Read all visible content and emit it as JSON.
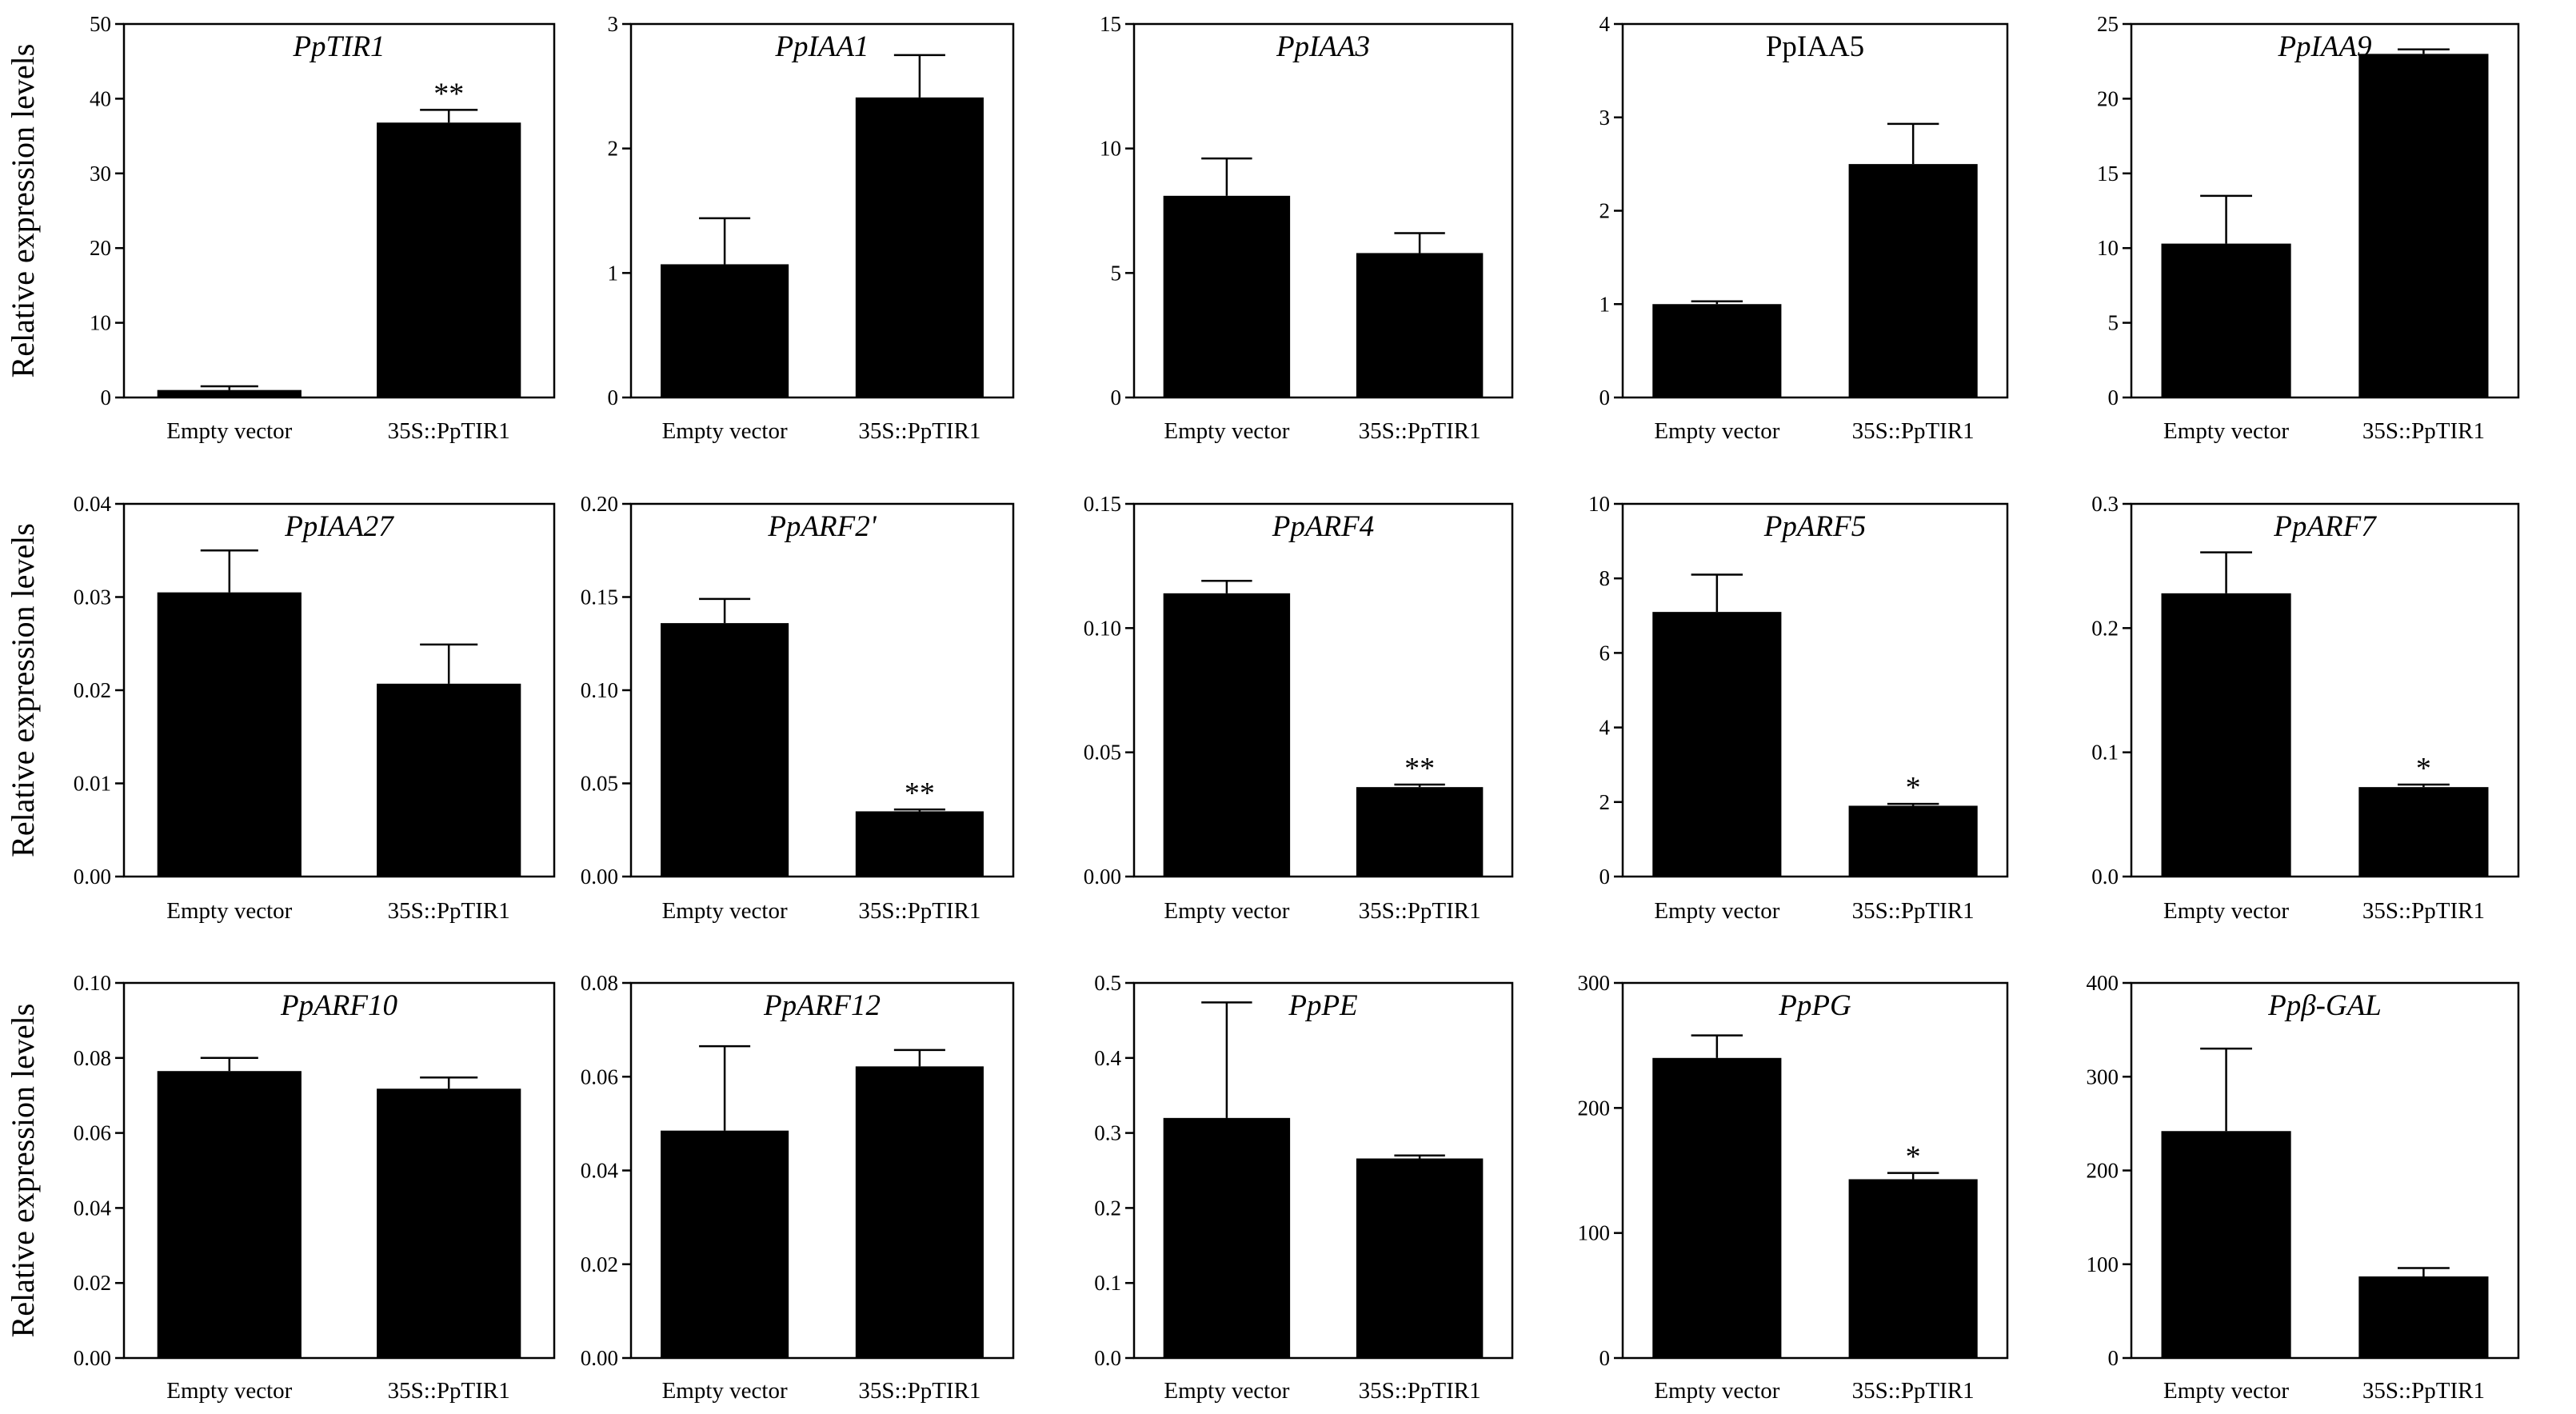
{
  "chart_data": {
    "type": "bar",
    "ylabel": "Relative expression levels",
    "categories": [
      "Empty vector",
      "35S::PpTIR1"
    ],
    "panels": [
      {
        "title": "PpTIR1",
        "italic": true,
        "ylim": [
          0,
          50
        ],
        "yticks": [
          "0",
          "10",
          "20",
          "30",
          "40",
          "50"
        ],
        "values": [
          1.0,
          36.8
        ],
        "errors": [
          0.5,
          1.7
        ],
        "sig": [
          "",
          "**"
        ]
      },
      {
        "title": "PpIAA1",
        "italic": true,
        "ylim": [
          0,
          3
        ],
        "yticks": [
          "0",
          "1",
          "2",
          "3"
        ],
        "values": [
          1.07,
          2.41
        ],
        "errors": [
          0.37,
          0.34
        ],
        "sig": [
          "",
          ""
        ]
      },
      {
        "title": "PpIAA3",
        "italic": true,
        "ylim": [
          0,
          15
        ],
        "yticks": [
          "0",
          "5",
          "10",
          "15"
        ],
        "values": [
          8.1,
          5.8
        ],
        "errors": [
          1.5,
          0.8
        ],
        "sig": [
          "",
          ""
        ]
      },
      {
        "title": "PpIAA5",
        "italic": false,
        "ylim": [
          0,
          4
        ],
        "yticks": [
          "0",
          "1",
          "2",
          "3",
          "4"
        ],
        "values": [
          1.0,
          2.5
        ],
        "errors": [
          0.03,
          0.43
        ],
        "sig": [
          "",
          ""
        ]
      },
      {
        "title": "PpIAA9",
        "italic": true,
        "ylim": [
          0,
          25
        ],
        "yticks": [
          "0",
          "5",
          "10",
          "15",
          "20",
          "25"
        ],
        "values": [
          10.3,
          23.0
        ],
        "errors": [
          3.2,
          0.3
        ],
        "sig": [
          "",
          ""
        ]
      },
      {
        "title": "PpIAA27",
        "italic": true,
        "ylim": [
          0,
          0.04
        ],
        "yticks": [
          "0.00",
          "0.01",
          "0.02",
          "0.03",
          "0.04"
        ],
        "values": [
          0.0305,
          0.0207
        ],
        "errors": [
          0.0045,
          0.0042
        ],
        "sig": [
          "",
          ""
        ]
      },
      {
        "title": "PpARF2'",
        "italic": true,
        "ylim": [
          0,
          0.2
        ],
        "yticks": [
          "0.00",
          "0.05",
          "0.10",
          "0.15",
          "0.20"
        ],
        "values": [
          0.136,
          0.035
        ],
        "errors": [
          0.013,
          0.001
        ],
        "sig": [
          "",
          "**"
        ]
      },
      {
        "title": "PpARF4",
        "italic": true,
        "ylim": [
          0,
          0.15
        ],
        "yticks": [
          "0.00",
          "0.05",
          "0.10",
          "0.15"
        ],
        "values": [
          0.114,
          0.036
        ],
        "errors": [
          0.005,
          0.001
        ],
        "sig": [
          "",
          "**"
        ]
      },
      {
        "title": "PpARF5",
        "italic": true,
        "ylim": [
          0,
          10
        ],
        "yticks": [
          "0",
          "2",
          "4",
          "6",
          "8",
          "10"
        ],
        "values": [
          7.1,
          1.9
        ],
        "errors": [
          1.0,
          0.05
        ],
        "sig": [
          "",
          "*"
        ]
      },
      {
        "title": "PpARF7",
        "italic": true,
        "ylim": [
          0,
          0.3
        ],
        "yticks": [
          "0.0",
          "0.1",
          "0.2",
          "0.3"
        ],
        "values": [
          0.228,
          0.072
        ],
        "errors": [
          0.033,
          0.002
        ],
        "sig": [
          "",
          "*"
        ]
      },
      {
        "title": "PpARF10",
        "italic": true,
        "ylim": [
          0,
          0.1
        ],
        "yticks": [
          "0.00",
          "0.02",
          "0.04",
          "0.06",
          "0.08",
          "0.10"
        ],
        "values": [
          0.0765,
          0.0718
        ],
        "errors": [
          0.0035,
          0.003
        ],
        "sig": [
          "",
          ""
        ]
      },
      {
        "title": "PpARF12",
        "italic": true,
        "ylim": [
          0,
          0.08
        ],
        "yticks": [
          "0.00",
          "0.02",
          "0.04",
          "0.06",
          "0.08"
        ],
        "values": [
          0.0485,
          0.0622
        ],
        "errors": [
          0.018,
          0.0035
        ],
        "sig": [
          "",
          ""
        ]
      },
      {
        "title": "PpPE",
        "italic": true,
        "ylim": [
          0,
          0.5
        ],
        "yticks": [
          "0.0",
          "0.1",
          "0.2",
          "0.3",
          "0.4",
          "0.5"
        ],
        "values": [
          0.32,
          0.266
        ],
        "errors": [
          0.154,
          0.004
        ],
        "sig": [
          "",
          ""
        ]
      },
      {
        "title": "PpPG",
        "italic": true,
        "ylim": [
          0,
          300
        ],
        "yticks": [
          "0",
          "100",
          "200",
          "300"
        ],
        "values": [
          240,
          143
        ],
        "errors": [
          18,
          5
        ],
        "sig": [
          "",
          "*"
        ]
      },
      {
        "title": "Ppβ-GAL",
        "italic": true,
        "ylim": [
          0,
          400
        ],
        "yticks": [
          "0",
          "100",
          "200",
          "300",
          "400"
        ],
        "values": [
          242,
          87
        ],
        "errors": [
          88,
          9
        ],
        "sig": [
          "",
          ""
        ]
      }
    ]
  }
}
